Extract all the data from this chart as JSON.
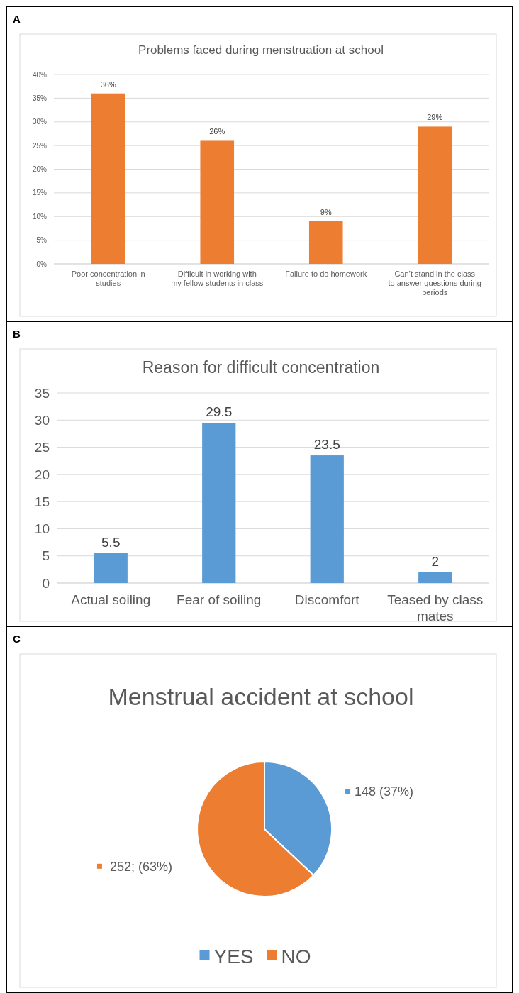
{
  "chart_data": [
    {
      "type": "bar",
      "title": "Problems faced during menstruation at school",
      "annotations": [
        "A"
      ],
      "categories": [
        "Poor concentration in studies",
        "Difficult in working with my fellow students in class",
        "Failure to do homework",
        "Can’t stand  in the class to answer questions during periods"
      ],
      "values": [
        36,
        26,
        9,
        29
      ],
      "value_labels": [
        "36%",
        "26%",
        "9%",
        "29%"
      ],
      "color": "#ed7d31",
      "ylim": [
        0,
        40
      ],
      "yticks": [
        {
          "value": 0,
          "label": "0%"
        },
        {
          "value": 5,
          "label": "5%"
        },
        {
          "value": 10,
          "label": "10%"
        },
        {
          "value": 15,
          "label": "15%"
        },
        {
          "value": 20,
          "label": "20%"
        },
        {
          "value": 25,
          "label": "25%"
        },
        {
          "value": 30,
          "label": "30%"
        },
        {
          "value": 35,
          "label": "35%"
        },
        {
          "value": 40,
          "label": "40%"
        }
      ],
      "grid": "y"
    },
    {
      "type": "bar",
      "title": "Reason for difficult concentration",
      "annotations": [
        "B"
      ],
      "categories": [
        "Actual soiling",
        "Fear of soiling",
        "Discomfort",
        "Teased by class mates"
      ],
      "values": [
        5.5,
        29.5,
        23.5,
        2
      ],
      "data_labels": true,
      "color": "#5b9bd5",
      "ylim": [
        0,
        35
      ],
      "yticks": [
        0,
        5,
        10,
        15,
        20,
        25,
        30,
        35
      ],
      "grid": "y"
    },
    {
      "type": "pie",
      "title": "Menstrual accident at school",
      "annotations": [
        "C"
      ],
      "categories": [
        "YES",
        "NO"
      ],
      "values": [
        148,
        252
      ],
      "value_labels": [
        "148 (37%)",
        "252; (63%)"
      ],
      "colors": [
        "#5b9bd5",
        "#ed7d31"
      ],
      "legend": "bottom"
    }
  ]
}
